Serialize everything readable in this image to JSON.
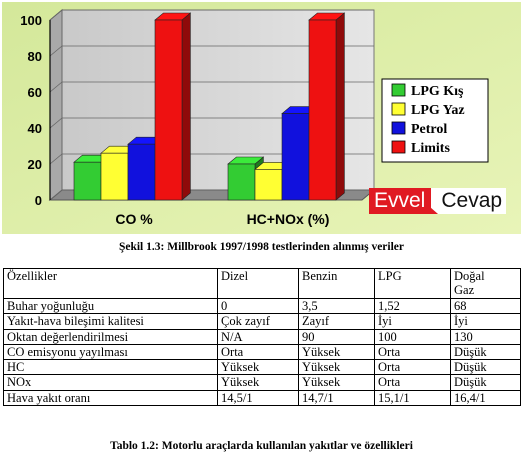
{
  "chart_data": {
    "type": "bar",
    "categories": [
      "CO %",
      "HC+NOx (%)"
    ],
    "series": [
      {
        "name": "LPG Kış",
        "values": [
          21,
          20
        ],
        "color": "#33cc33"
      },
      {
        "name": "LPG Yaz",
        "values": [
          26,
          17
        ],
        "color": "#ffff33"
      },
      {
        "name": "Petrol",
        "values": [
          31,
          48
        ],
        "color": "#1111dd"
      },
      {
        "name": "Limits",
        "values": [
          100,
          100
        ],
        "color": "#ee1111"
      }
    ],
    "yticks": [
      "0",
      "20",
      "40",
      "60",
      "80",
      "100"
    ],
    "ylim": [
      0,
      100
    ],
    "grid": true,
    "legend": "right",
    "title": "",
    "xlabel": "",
    "ylabel": ""
  },
  "watermark": {
    "part1": "Evvel",
    "part2": "Cevap"
  },
  "figure_caption": "Şekil 1.3: Millbrook 1997/1998 testlerinden alınmış veriler",
  "table": {
    "headers": [
      "Özellikler",
      "Dizel",
      "Benzin",
      "LPG",
      "Doğal Gaz"
    ],
    "rows": [
      [
        "Buhar yoğunluğu",
        "0",
        "3,5",
        "1,52",
        "68"
      ],
      [
        "Yakıt-hava bileşimi kalitesi",
        "Çok zayıf",
        "Zayıf",
        "İyi",
        "İyi"
      ],
      [
        "Oktan değerlendirilmesi",
        "N/A",
        "90",
        "100",
        "130"
      ],
      [
        "CO emisyonu yayılması",
        "Orta",
        "Yüksek",
        "Orta",
        "Düşük"
      ],
      [
        "HC",
        "Yüksek",
        "Yüksek",
        "Orta",
        "Düşük"
      ],
      [
        "NOx",
        "Yüksek",
        "Yüksek",
        "Orta",
        "Düşük"
      ],
      [
        "Hava yakıt oranı",
        "14,5/1",
        "14,7/1",
        "15,1/1",
        "16,4/1"
      ]
    ]
  },
  "table_caption": "Tablo 1.2: Motorlu araçlarda kullanılan yakıtlar ve özellikleri"
}
